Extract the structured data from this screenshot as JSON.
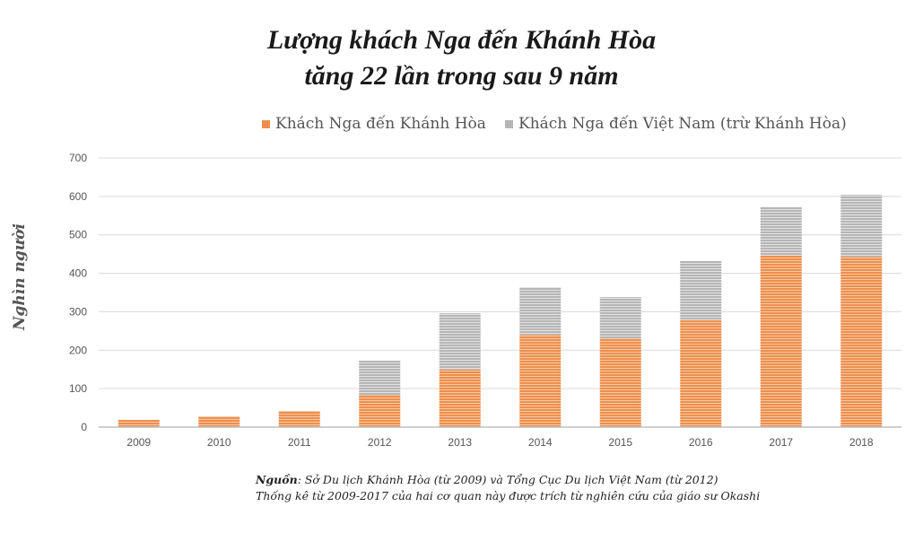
{
  "chart_data": {
    "type": "bar",
    "stacked": true,
    "title_line1": "Lượng khách Nga đến Khánh Hòa",
    "title_line2": "tăng 22 lần trong sau 9 năm",
    "ylabel": "Nghìn người",
    "xlabel": "",
    "ylim": [
      0,
      700
    ],
    "yticks": [
      0,
      100,
      200,
      300,
      400,
      500,
      600,
      700
    ],
    "grid": true,
    "legend_position": "top",
    "categories": [
      "2009",
      "2010",
      "2011",
      "2012",
      "2013",
      "2014",
      "2015",
      "2016",
      "2017",
      "2018"
    ],
    "series": [
      {
        "name": "Khách Nga đến Khánh Hòa",
        "color": "#ED8F4E",
        "values": [
          19,
          28,
          42,
          84,
          150,
          240,
          231,
          278,
          446,
          443
        ]
      },
      {
        "name": "Khách Nga đến Việt Nam (trừ Khánh Hòa)",
        "color": "#B5B5B5",
        "values": [
          0,
          0,
          0,
          89,
          146,
          124,
          107,
          154,
          126,
          161
        ]
      }
    ]
  },
  "source": {
    "label": "Nguồn",
    "text": ": Sở Du lịch Khánh  Hòa (từ 2009) và Tổng Cục Du lịch Việt Nam (từ 2012)",
    "note": "Thống kê từ 2009-2017  của hai cơ quan này được trích từ nghiên cứu của giáo sư Okashi"
  }
}
